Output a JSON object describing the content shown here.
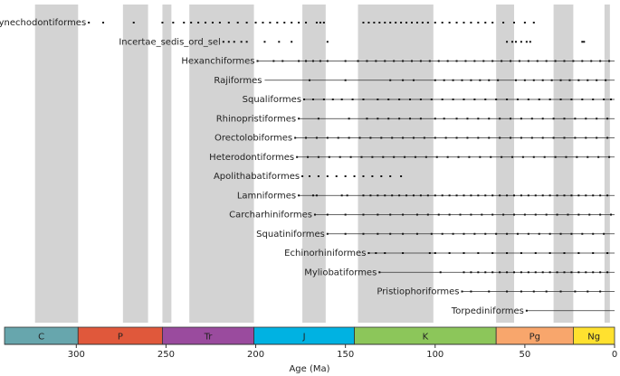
{
  "chart_data": {
    "type": "occurrence",
    "xlabel": "Age (Ma)",
    "xlim": [
      340,
      0
    ],
    "xticks": [
      300,
      250,
      200,
      150,
      100,
      50,
      0
    ],
    "shade_color": "#d3d3d3",
    "shaded": [
      [
        323,
        299
      ],
      [
        274,
        260
      ],
      [
        252,
        247
      ],
      [
        237,
        201
      ],
      [
        174,
        161
      ],
      [
        143,
        101
      ],
      [
        66,
        56
      ],
      [
        34,
        23
      ],
      [
        5.6,
        2.6
      ]
    ],
    "periods": [
      {
        "name": "C",
        "start": 340,
        "end": 299,
        "color": "#67a6ad"
      },
      {
        "name": "P",
        "start": 299,
        "end": 252,
        "color": "#e0583b"
      },
      {
        "name": "Tr",
        "start": 252,
        "end": 201,
        "color": "#9a4b9e"
      },
      {
        "name": "J",
        "start": 201,
        "end": 145,
        "color": "#00b2e2"
      },
      {
        "name": "K",
        "start": 145,
        "end": 66,
        "color": "#8cc65a"
      },
      {
        "name": "Pg",
        "start": 66,
        "end": 23,
        "color": "#f8a66c"
      },
      {
        "name": "Ng",
        "start": 23,
        "end": 0,
        "color": "#ffe12f"
      }
    ],
    "rows": [
      {
        "name": "Synechodontiformes",
        "occurrences": [
          293,
          285,
          268,
          252,
          246,
          240,
          236,
          232,
          228,
          224,
          220,
          215,
          210,
          205,
          200,
          196,
          192,
          188,
          184,
          180,
          176,
          172,
          166,
          164,
          162,
          140,
          137,
          134,
          131,
          128,
          125,
          122,
          119,
          116,
          113,
          110,
          107,
          104,
          100,
          96,
          92,
          88,
          84,
          80,
          76,
          72,
          68,
          62,
          56,
          50,
          45
        ]
      },
      {
        "name": "Incertae_sedis_ord_sel",
        "occurrences": [
          218,
          215,
          212,
          208,
          205,
          195,
          187,
          180,
          160,
          60,
          57,
          55,
          52,
          49,
          47,
          18,
          17
        ]
      },
      {
        "name": "Hexanchiformes",
        "range": [
          199,
          0
        ],
        "occurrences": [
          199,
          190,
          185,
          176,
          172,
          168,
          164,
          160,
          150,
          143,
          138,
          133,
          128,
          123,
          118,
          113,
          108,
          103,
          98,
          93,
          88,
          83,
          78,
          73,
          68,
          63,
          58,
          53,
          48,
          43,
          38,
          33,
          28,
          23,
          18,
          13,
          8,
          3
        ]
      },
      {
        "name": "Rajiformes",
        "range": [
          195,
          0
        ],
        "occurrences": [
          170,
          150,
          125,
          118,
          112,
          100,
          95,
          90,
          85,
          80,
          75,
          70,
          65,
          55,
          50,
          45,
          40,
          35,
          30,
          25,
          20,
          15,
          10,
          5
        ]
      },
      {
        "name": "Squaliformes",
        "range": [
          173,
          0
        ],
        "occurrences": [
          173,
          168,
          162,
          157,
          152,
          146,
          140,
          132,
          126,
          120,
          114,
          108,
          102,
          96,
          90,
          84,
          78,
          72,
          66,
          60,
          54,
          48,
          42,
          36,
          30,
          24,
          18,
          12,
          6,
          2
        ]
      },
      {
        "name": "Rhinopristiformes",
        "range": [
          176,
          0
        ],
        "occurrences": [
          176,
          165,
          148,
          138,
          132,
          126,
          120,
          114,
          108,
          100,
          95,
          88,
          82,
          76,
          70,
          64,
          58,
          52,
          46,
          40,
          34,
          28,
          22,
          16,
          10,
          4
        ]
      },
      {
        "name": "Orectolobiformes",
        "range": [
          178,
          0
        ],
        "occurrences": [
          178,
          172,
          166,
          160,
          154,
          148,
          142,
          136,
          130,
          124,
          118,
          112,
          106,
          100,
          94,
          88,
          82,
          76,
          70,
          64,
          58,
          52,
          46,
          40,
          34,
          28,
          22,
          16,
          10,
          4
        ]
      },
      {
        "name": "Heterodontiformes",
        "range": [
          177,
          0
        ],
        "occurrences": [
          177,
          171,
          165,
          159,
          153,
          147,
          141,
          135,
          129,
          123,
          117,
          111,
          105,
          99,
          93,
          87,
          81,
          75,
          69,
          63,
          57,
          51,
          45,
          39,
          33,
          27,
          21,
          15,
          9,
          3
        ]
      },
      {
        "name": "Apolithabatiformes",
        "occurrences": [
          174,
          170,
          165,
          160,
          155,
          150,
          145,
          140,
          135,
          130,
          125,
          119
        ]
      },
      {
        "name": "Lamniformes",
        "range": [
          176,
          0
        ],
        "occurrences": [
          176,
          168,
          166,
          152,
          149,
          140,
          136,
          132,
          128,
          124,
          120,
          116,
          112,
          108,
          104,
          100,
          96,
          92,
          88,
          84,
          80,
          76,
          72,
          68,
          64,
          60,
          56,
          52,
          48,
          44,
          40,
          36,
          32,
          28,
          24,
          20,
          16,
          12,
          8,
          4
        ]
      },
      {
        "name": "Carcharhiniformes",
        "range": [
          167,
          0
        ],
        "occurrences": [
          167,
          160,
          150,
          140,
          132,
          125,
          118,
          110,
          104,
          98,
          92,
          86,
          80,
          74,
          68,
          62,
          56,
          50,
          44,
          38,
          32,
          26,
          20,
          14,
          8,
          2
        ]
      },
      {
        "name": "Squatiniformes",
        "range": [
          160,
          0
        ],
        "occurrences": [
          160,
          150,
          140,
          132,
          125,
          118,
          110,
          102,
          96,
          90,
          84,
          78,
          72,
          66,
          60,
          54,
          48,
          42,
          36,
          30,
          24,
          18,
          12,
          6
        ]
      },
      {
        "name": "Echinorhiniformes",
        "range": [
          137,
          0
        ],
        "occurrences": [
          137,
          133,
          128,
          118,
          103,
          100,
          92,
          84,
          76,
          68,
          60,
          52,
          44,
          36,
          28,
          20,
          12,
          4
        ]
      },
      {
        "name": "Myliobatiformes",
        "range": [
          131,
          0
        ],
        "occurrences": [
          131,
          97,
          84,
          80,
          76,
          72,
          68,
          64,
          60,
          56,
          52,
          48,
          44,
          40,
          36,
          32,
          28,
          24,
          20,
          16,
          12,
          8,
          4
        ]
      },
      {
        "name": "Pristiophoriformes",
        "range": [
          85,
          0
        ],
        "occurrences": [
          85,
          80,
          70,
          60,
          52,
          45,
          38,
          30,
          22,
          15,
          8
        ]
      },
      {
        "name": "Torpediniformes",
        "range": [
          49,
          0
        ],
        "occurrences": [
          49
        ]
      }
    ]
  }
}
